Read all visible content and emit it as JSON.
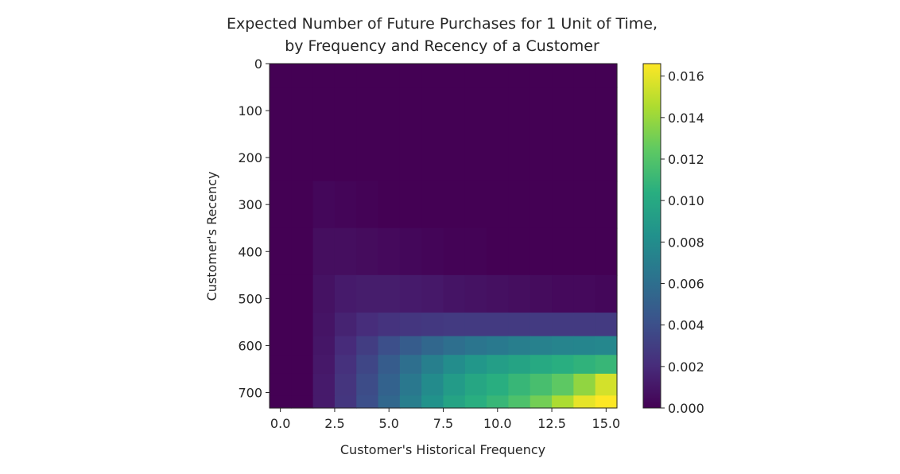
{
  "chart_data": {
    "type": "heatmap",
    "title_line1": "Expected Number of Future Purchases for 1 Unit of Time,",
    "title_line2": "by Frequency and Recency of a Customer",
    "xlabel": "Customer's Historical Frequency",
    "ylabel": "Customer's Recency",
    "xlim": [
      -0.5,
      15.5
    ],
    "ylim": [
      0,
      733
    ],
    "y_inverted": true,
    "x_ticks": [
      0.0,
      2.5,
      5.0,
      7.5,
      10.0,
      12.5,
      15.0
    ],
    "x_tick_labels": [
      "0.0",
      "2.5",
      "5.0",
      "7.5",
      "10.0",
      "12.5",
      "15.0"
    ],
    "y_ticks": [
      0,
      100,
      200,
      300,
      400,
      500,
      600,
      700
    ],
    "y_tick_labels": [
      "0",
      "100",
      "200",
      "300",
      "400",
      "500",
      "600",
      "700"
    ],
    "colorbar": {
      "colormap": "viridis",
      "vmin": 0.0,
      "vmax": 0.0166,
      "ticks": [
        0.0,
        0.002,
        0.004,
        0.006,
        0.008,
        0.01,
        0.012,
        0.014,
        0.016
      ],
      "tick_labels": [
        "0.000",
        "0.002",
        "0.004",
        "0.006",
        "0.008",
        "0.010",
        "0.012",
        "0.014",
        "0.016"
      ]
    },
    "frequency_values": [
      0,
      1,
      2,
      3,
      4,
      5,
      6,
      7,
      8,
      9,
      10,
      11,
      12,
      13,
      14,
      15
    ],
    "recency_rows": [
      {
        "recency": 0,
        "values": [
          0,
          0,
          0,
          0,
          0,
          0,
          0,
          0,
          0,
          0,
          0,
          0,
          0,
          0,
          0,
          0
        ]
      },
      {
        "recency": 100,
        "values": [
          0,
          0,
          0,
          0,
          0,
          0,
          0,
          0,
          0,
          0,
          0,
          0,
          0,
          0,
          0,
          0
        ]
      },
      {
        "recency": 200,
        "values": [
          0,
          0,
          0,
          0,
          0,
          0,
          0,
          0,
          0,
          0,
          0,
          0,
          0,
          0,
          0,
          0
        ]
      },
      {
        "recency": 300,
        "values": [
          0,
          0,
          0.0003,
          0.0002,
          0.0001,
          0,
          0,
          0,
          0,
          0,
          0,
          0,
          0,
          0,
          0,
          0
        ]
      },
      {
        "recency": 400,
        "values": [
          0,
          0,
          0.0006,
          0.0006,
          0.0005,
          0.0004,
          0.0003,
          0.0002,
          0.0001,
          0.0001,
          0,
          0,
          0,
          0,
          0,
          0
        ]
      },
      {
        "recency": 500,
        "values": [
          0,
          0,
          0.0008,
          0.0012,
          0.0013,
          0.0013,
          0.0012,
          0.0011,
          0.0009,
          0.0008,
          0.0007,
          0.0006,
          0.0005,
          0.0004,
          0.0004,
          0.0003
        ]
      },
      {
        "recency": 560,
        "values": [
          0,
          0,
          0.0009,
          0.0016,
          0.0021,
          0.0024,
          0.0026,
          0.0027,
          0.0028,
          0.0028,
          0.0028,
          0.0028,
          0.0028,
          0.0028,
          0.0028,
          0.0028
        ]
      },
      {
        "recency": 600,
        "values": [
          0,
          0,
          0.001,
          0.002,
          0.003,
          0.004,
          0.0048,
          0.0055,
          0.006,
          0.0064,
          0.0067,
          0.007,
          0.0072,
          0.0074,
          0.0075,
          0.0076
        ]
      },
      {
        "recency": 640,
        "values": [
          0,
          0,
          0.0011,
          0.0023,
          0.0035,
          0.0048,
          0.006,
          0.0071,
          0.008,
          0.0087,
          0.0092,
          0.0096,
          0.01,
          0.0104,
          0.0107,
          0.011
        ]
      },
      {
        "recency": 680,
        "values": [
          0,
          0,
          0.0012,
          0.0025,
          0.0038,
          0.0052,
          0.0066,
          0.0079,
          0.009,
          0.0098,
          0.0104,
          0.011,
          0.0116,
          0.0124,
          0.0138,
          0.0155
        ]
      },
      {
        "recency": 733,
        "values": [
          0,
          0,
          0.0012,
          0.0026,
          0.004,
          0.0055,
          0.007,
          0.0084,
          0.0096,
          0.0104,
          0.011,
          0.0118,
          0.013,
          0.0145,
          0.016,
          0.0166
        ]
      }
    ]
  }
}
